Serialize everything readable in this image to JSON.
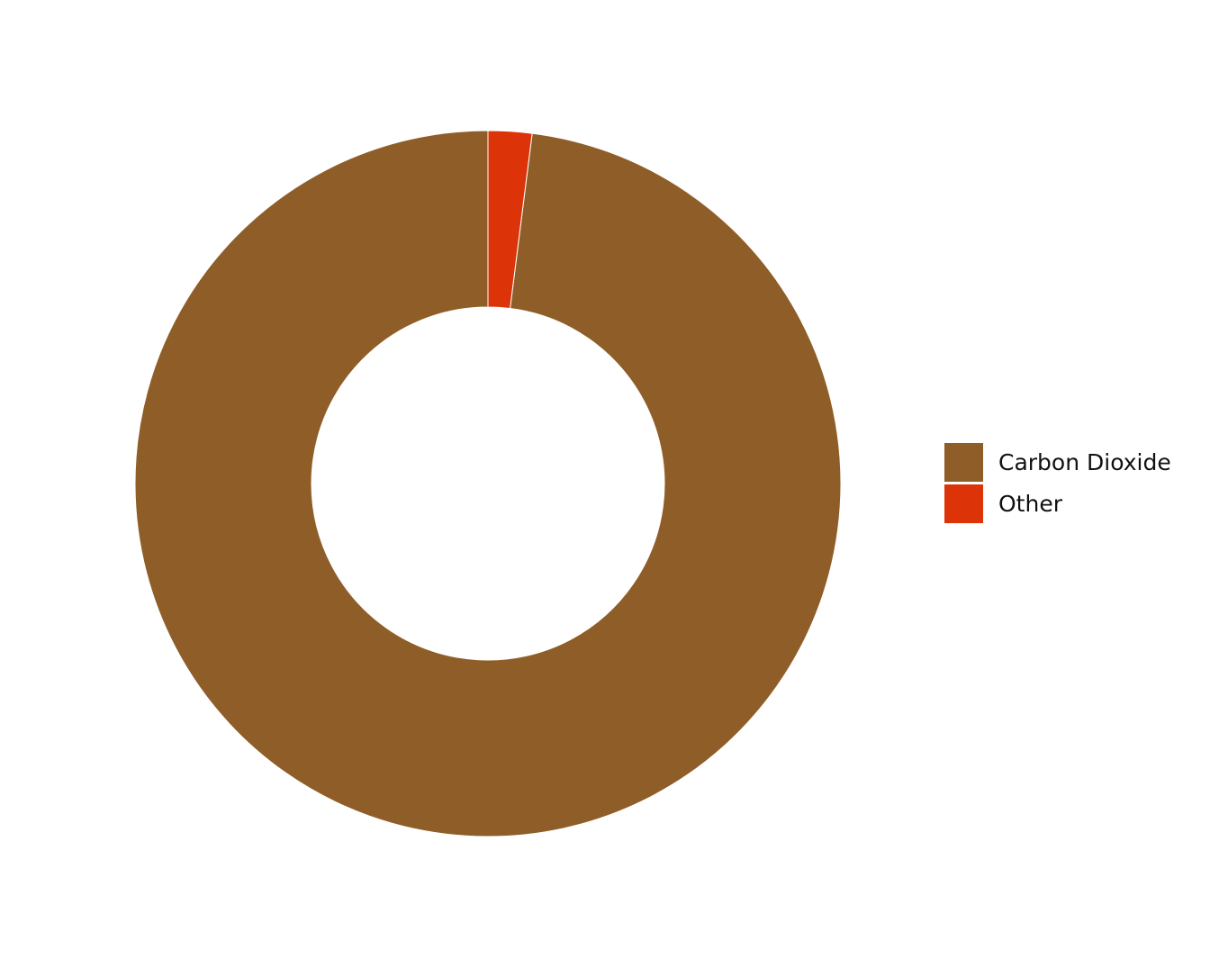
{
  "chart_data": {
    "type": "pie",
    "variant": "donut",
    "title": "",
    "categories": [
      "Carbon Dioxide",
      "Other"
    ],
    "values": [
      98,
      2
    ],
    "colors": [
      "#8f5e28",
      "#dc3408"
    ],
    "legend_position": "right",
    "start_angle": "top",
    "direction": "counterclockwise from top for first slice; second slice clockwise from top"
  }
}
